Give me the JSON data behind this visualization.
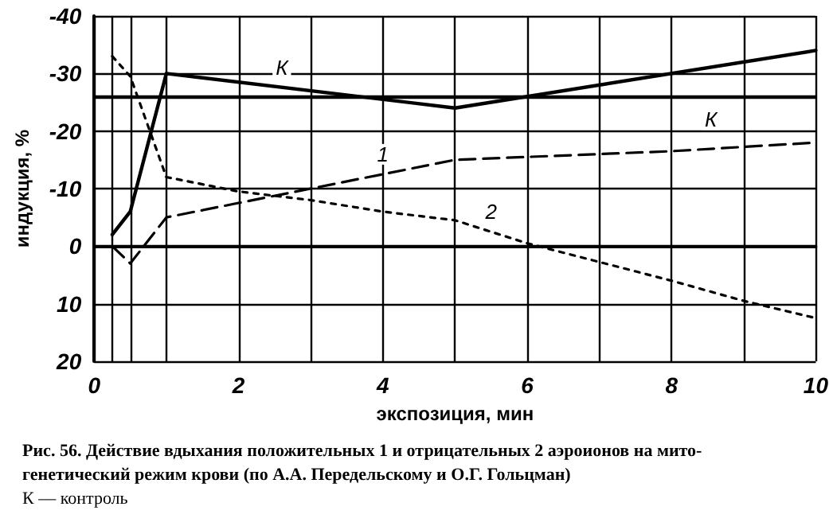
{
  "chart_data": {
    "type": "line",
    "xlabel": "экспозиция, мин",
    "ylabel": "индукция, %",
    "annotations": [
      "Рис. 56. Действие вдыхания положительных 1 и отрицательных 2 аэроионов на мито-",
      "генетический режим крови (по А.А. Передельскому и О.Г. Гольцман)",
      "К — контроль"
    ],
    "series": [
      {
        "name": "К",
        "color": "#000000",
        "line_style": "solid",
        "x": [
          0.25,
          0.5,
          1,
          5,
          10
        ],
        "values": [
          -2,
          -6,
          -30,
          -24,
          -34
        ]
      },
      {
        "name": "1",
        "color": "#000000",
        "line_style": "dashed",
        "x": [
          0.25,
          0.5,
          1,
          3,
          5,
          8,
          10
        ],
        "values": [
          0,
          3,
          -5,
          -10,
          -15,
          -16.5,
          -18
        ]
      },
      {
        "name": "2",
        "color": "#000000",
        "line_style": "dotted",
        "x": [
          0.25,
          0.5,
          1,
          2,
          3,
          4,
          5,
          6,
          8,
          9,
          10
        ],
        "values": [
          -33,
          -29.5,
          -12,
          -9.5,
          -8,
          -6,
          -4.5,
          -0.5,
          6,
          9.5,
          12.5
        ]
      }
    ],
    "ref_lines": [
      {
        "axis": "y",
        "value": -26,
        "label": "К",
        "color": "#000000",
        "line_style": "solid"
      }
    ],
    "xlim": [
      0,
      10
    ],
    "xticks": [
      0,
      {
        "value": 0.25,
        "label": null
      },
      {
        "value": 0.5,
        "label": null
      },
      {
        "value": 1,
        "label": null
      },
      2,
      {
        "value": 3,
        "label": null
      },
      4,
      {
        "value": 5,
        "label": null
      },
      6,
      {
        "value": 7,
        "label": null
      },
      8,
      {
        "value": 9,
        "label": null
      },
      10
    ],
    "ylim": [
      20,
      -40
    ],
    "yticks": [
      20,
      10,
      0,
      -10,
      -20,
      -30,
      -40
    ],
    "grid": true,
    "marker": "none"
  }
}
